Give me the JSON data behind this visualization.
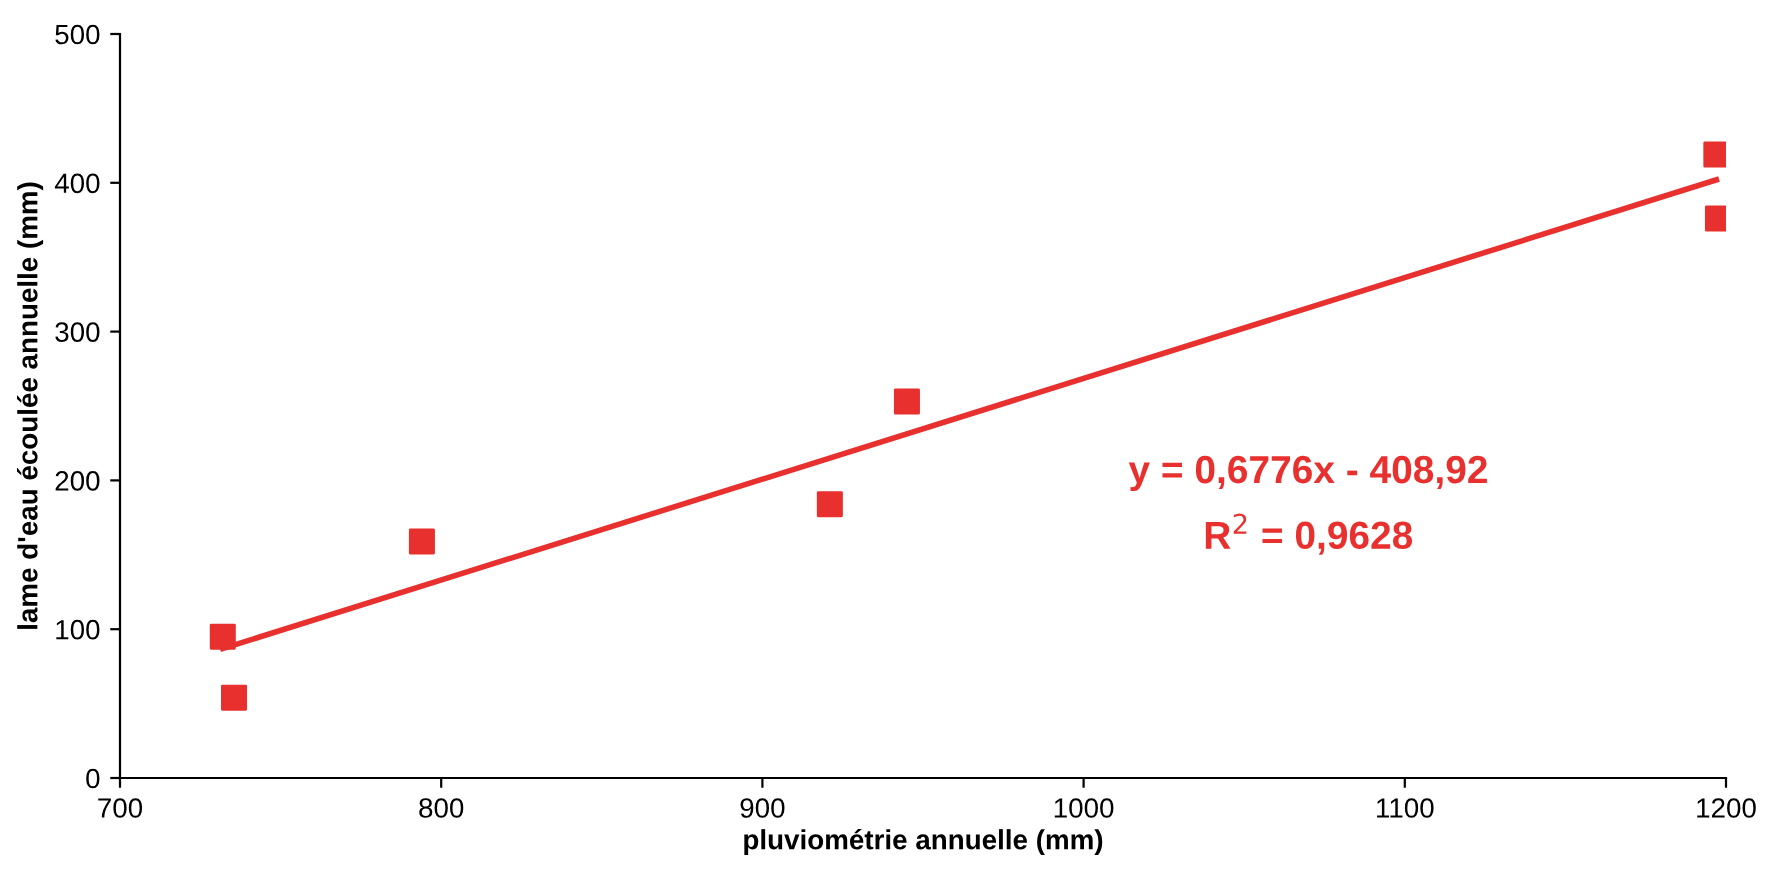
{
  "chart_data": {
    "type": "scatter",
    "xlabel": "pluviométrie annuelle (mm)",
    "ylabel": "lame d'eau écoulée annuelle (mm)",
    "xlim": [
      700,
      1200
    ],
    "xticks": [
      700,
      800,
      900,
      1000,
      1100,
      1200
    ],
    "ylim": [
      0,
      500
    ],
    "yticks": [
      0,
      100,
      200,
      300,
      400,
      500
    ],
    "grid": false,
    "legend": false,
    "marker": "square",
    "series": [
      {
        "color": "#e8302e",
        "x": [
          732,
          735.5,
          794,
          921,
          945,
          1197,
          1197.5
        ],
        "values": [
          95,
          54,
          159,
          184,
          253,
          419,
          376
        ]
      },
      {
        "type": "line",
        "color": "#e8302e",
        "marker": "none",
        "line_style": "solid",
        "x": [
          732,
          1197
        ],
        "values": [
          87,
          402
        ]
      }
    ],
    "annotations": [
      "y = 0,6776x - 408,92",
      "R$^{2}$ = 0,9628"
    ]
  }
}
